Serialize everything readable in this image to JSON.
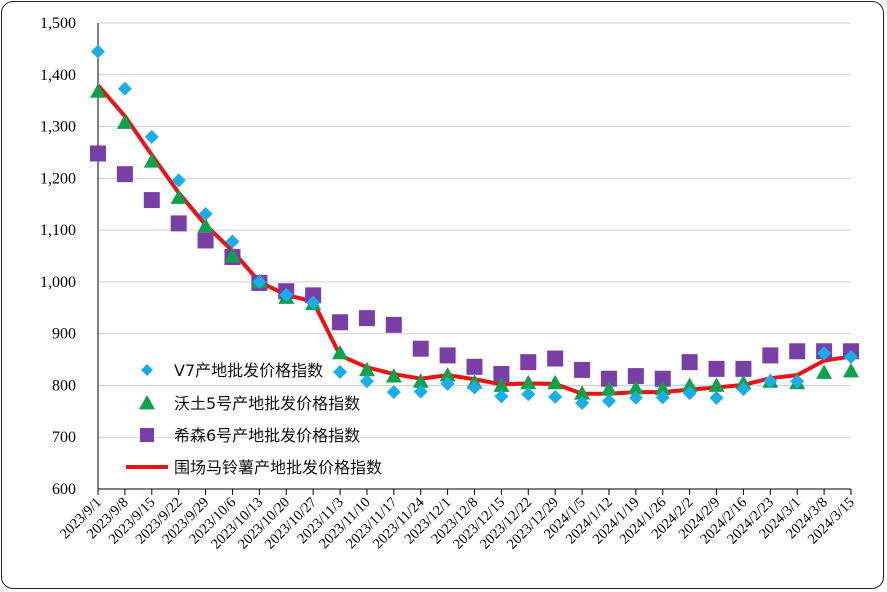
{
  "chart_data": {
    "type": "line",
    "title": "",
    "xlabel": "",
    "ylabel": "",
    "ylim": [
      600,
      1500
    ],
    "yticks": [
      600,
      700,
      800,
      900,
      1000,
      1100,
      1200,
      1300,
      1400,
      1500
    ],
    "ytick_labels": [
      "600",
      "700",
      "800",
      "900",
      "1,000",
      "1,100",
      "1,200",
      "1,300",
      "1,400",
      "1,500"
    ],
    "grid": true,
    "legend_position": "lower-left",
    "categories": [
      "2023/9/1",
      "2023/9/8",
      "2023/9/15",
      "2023/9/22",
      "2023/9/29",
      "2023/10/6",
      "2023/10/13",
      "2023/10/20",
      "2023/10/27",
      "2023/11/3",
      "2023/11/10",
      "2023/11/17",
      "2023/11/24",
      "2023/12/1",
      "2023/12/8",
      "2023/12/15",
      "2023/12/22",
      "2023/12/29",
      "2024/1/5",
      "2024/1/12",
      "2024/1/19",
      "2024/1/26",
      "2024/2/2",
      "2024/2/9",
      "2024/2/16",
      "2024/2/23",
      "2024/3/1",
      "2024/3/8",
      "2024/3/15"
    ],
    "series": [
      {
        "name": "V7产地批发价格指数",
        "marker": "diamond",
        "color": "#1aaee8",
        "values": [
          1445,
          1373,
          1280,
          1196,
          1131,
          1078,
          1000,
          975,
          960,
          826,
          808,
          787,
          788,
          803,
          796,
          779,
          783,
          778,
          766,
          770,
          776,
          777,
          785,
          776,
          793,
          808,
          808,
          862,
          855
        ]
      },
      {
        "name": "沃土5号产地批发价格指数",
        "marker": "triangle",
        "color": "#0aa24a",
        "values": [
          1368,
          1308,
          1233,
          1163,
          1108,
          1050,
          1000,
          970,
          958,
          863,
          830,
          818,
          808,
          820,
          806,
          800,
          805,
          805,
          785,
          793,
          795,
          794,
          800,
          800,
          805,
          808,
          805,
          825,
          828
        ]
      },
      {
        "name": "希森6号产地批发价格指数",
        "marker": "square",
        "color": "#7a3fa6",
        "values": [
          1248,
          1208,
          1158,
          1113,
          1080,
          1048,
          998,
          982,
          974,
          922,
          930,
          917,
          871,
          858,
          836,
          822,
          845,
          852,
          830,
          813,
          818,
          813,
          845,
          832,
          832,
          858,
          866,
          866,
          866
        ]
      },
      {
        "name": "围场马铃薯产地批发价格指数",
        "marker": "line",
        "color": "#ee1111",
        "values": [
          1380,
          1320,
          1245,
          1172,
          1110,
          1060,
          1000,
          975,
          962,
          858,
          835,
          822,
          813,
          820,
          812,
          802,
          804,
          803,
          784,
          784,
          787,
          787,
          792,
          796,
          801,
          814,
          820,
          848,
          856
        ]
      }
    ]
  }
}
